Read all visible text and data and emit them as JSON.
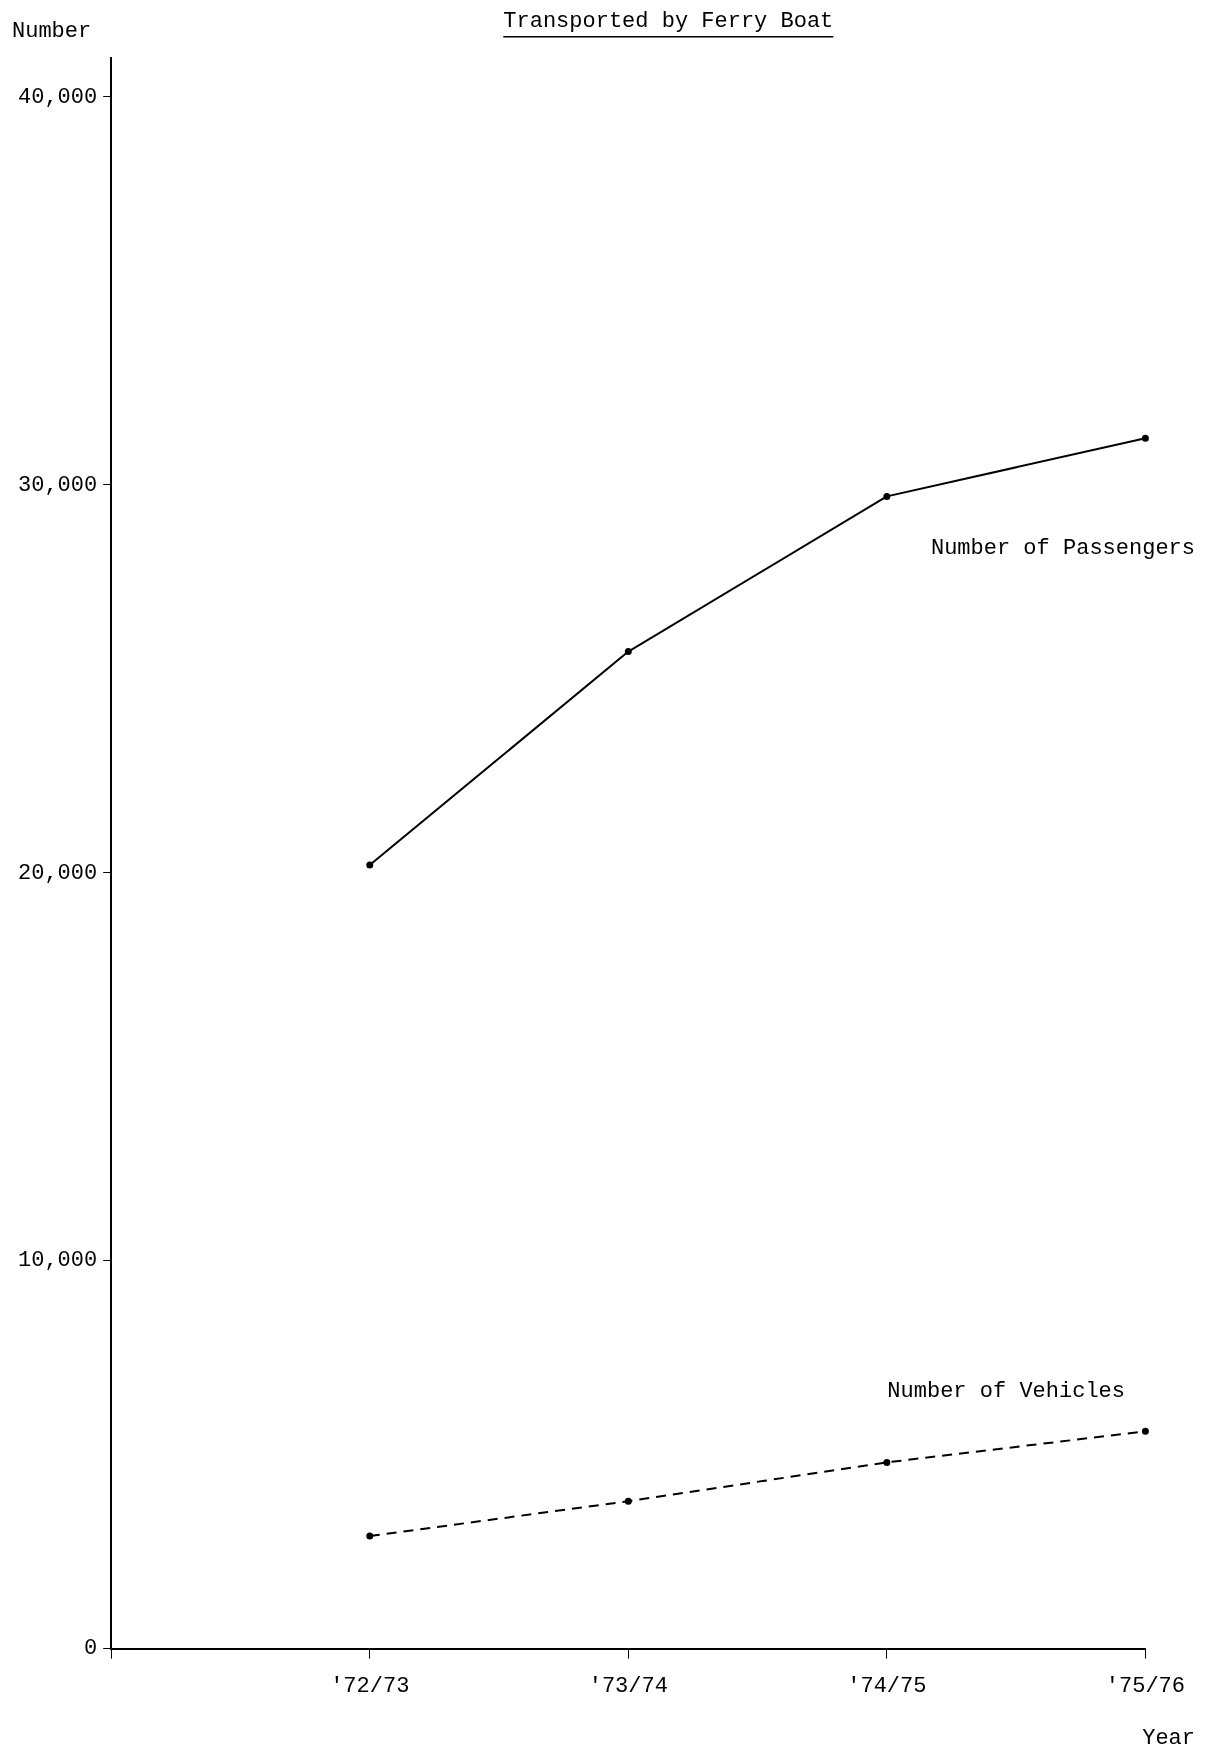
{
  "chart_data": {
    "type": "line",
    "title": "Transported by Ferry Boat",
    "ylabel": "Number",
    "xlabel": "Year",
    "categories": [
      null,
      "'72/73",
      "'73/74",
      "'74/75",
      "'75/76"
    ],
    "series": [
      {
        "name": "Number of Passengers",
        "color": "#000000",
        "line_style": "solid",
        "values": [
          null,
          20200,
          25700,
          29700,
          31200
        ]
      },
      {
        "name": "Number of Vehicles",
        "color": "#000000",
        "line_style": "dashed",
        "values": [
          null,
          2900,
          3800,
          4800,
          5600
        ]
      }
    ],
    "ylim": [
      0,
      41000
    ],
    "yticks": [
      0,
      {
        "value": 10000,
        "label": "10,000"
      },
      {
        "value": 20000,
        "label": "20,000"
      },
      {
        "value": 30000,
        "label": "30,000"
      },
      {
        "value": 40000,
        "label": "40,000"
      }
    ],
    "grid": false,
    "legend": false,
    "marker": "circle"
  }
}
